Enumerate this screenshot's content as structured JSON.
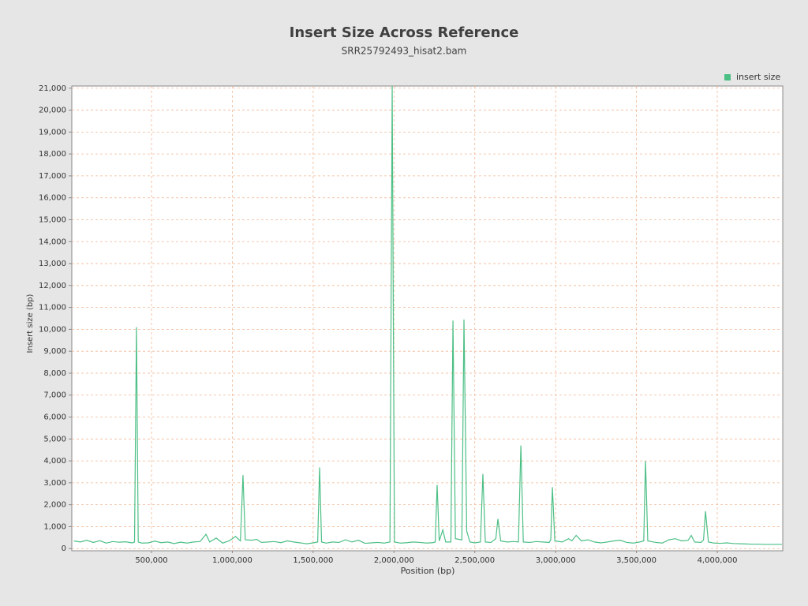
{
  "chart_data": {
    "type": "line",
    "title": "Insert Size Across Reference",
    "subtitle": "SRR25792493_hisat2.bam",
    "x_label": "Position (bp)",
    "y_label": "Insert size (bp)",
    "grid": true,
    "legend": "top-right",
    "xlim": [
      7000,
      4405000
    ],
    "ylim": [
      -100,
      21100
    ],
    "xticks": [
      {
        "value": 500000,
        "label": "500,000"
      },
      {
        "value": 1000000,
        "label": "1,000,000"
      },
      {
        "value": 1500000,
        "label": "1,500,000"
      },
      {
        "value": 2000000,
        "label": "2,000,000"
      },
      {
        "value": 2500000,
        "label": "2,500,000"
      },
      {
        "value": 3000000,
        "label": "3,000,000"
      },
      {
        "value": 3500000,
        "label": "3,500,000"
      },
      {
        "value": 4000000,
        "label": "4,000,000"
      }
    ],
    "yticks": [
      0,
      {
        "value": 1000,
        "label": "1,000"
      },
      {
        "value": 2000,
        "label": "2,000"
      },
      {
        "value": 3000,
        "label": "3,000"
      },
      {
        "value": 4000,
        "label": "4,000"
      },
      {
        "value": 5000,
        "label": "5,000"
      },
      {
        "value": 6000,
        "label": "6,000"
      },
      {
        "value": 7000,
        "label": "7,000"
      },
      {
        "value": 8000,
        "label": "8,000"
      },
      {
        "value": 9000,
        "label": "9,000"
      },
      {
        "value": 10000,
        "label": "10,000"
      },
      {
        "value": 11000,
        "label": "11,000"
      },
      {
        "value": 12000,
        "label": "12,000"
      },
      {
        "value": 13000,
        "label": "13,000"
      },
      {
        "value": 14000,
        "label": "14,000"
      },
      {
        "value": 15000,
        "label": "15,000"
      },
      {
        "value": 16000,
        "label": "16,000"
      },
      {
        "value": 17000,
        "label": "17,000"
      },
      {
        "value": 18000,
        "label": "18,000"
      },
      {
        "value": 19000,
        "label": "19,000"
      },
      {
        "value": 20000,
        "label": "20,000"
      },
      {
        "value": 21000,
        "label": "21,000"
      }
    ],
    "x": [
      20000,
      60000,
      100000,
      140000,
      180000,
      220000,
      260000,
      300000,
      340000,
      380000,
      395000,
      407000,
      418000,
      440000,
      480000,
      520000,
      560000,
      600000,
      640000,
      680000,
      720000,
      760000,
      800000,
      837000,
      860000,
      900000,
      940000,
      980000,
      1020000,
      1050000,
      1066000,
      1080000,
      1120000,
      1150000,
      1180000,
      1220000,
      1260000,
      1300000,
      1340000,
      1380000,
      1420000,
      1460000,
      1500000,
      1528000,
      1540000,
      1552000,
      1580000,
      1620000,
      1660000,
      1700000,
      1740000,
      1780000,
      1820000,
      1860000,
      1900000,
      1940000,
      1975000,
      1989000,
      2003000,
      2040000,
      2080000,
      2120000,
      2160000,
      2200000,
      2240000,
      2255000,
      2267000,
      2280000,
      2302000,
      2320000,
      2352000,
      2365000,
      2380000,
      2420000,
      2433000,
      2450000,
      2470000,
      2500000,
      2535000,
      2550000,
      2565000,
      2600000,
      2630000,
      2643000,
      2660000,
      2700000,
      2740000,
      2770000,
      2785000,
      2800000,
      2840000,
      2880000,
      2920000,
      2960000,
      2970000,
      2980000,
      2995000,
      3040000,
      3080000,
      3100000,
      3127000,
      3160000,
      3200000,
      3240000,
      3280000,
      3320000,
      3360000,
      3400000,
      3440000,
      3480000,
      3520000,
      3545000,
      3556000,
      3570000,
      3620000,
      3660000,
      3700000,
      3740000,
      3780000,
      3820000,
      3839000,
      3860000,
      3900000,
      3915000,
      3927000,
      3945000,
      3980000,
      4020000,
      4060000,
      4100000,
      4140000,
      4180000,
      4220000,
      4260000,
      4300000,
      4340000,
      4380000,
      4400000
    ],
    "series": [
      {
        "name": "insert size",
        "color": "#4cbf85",
        "values": [
          350,
          300,
          380,
          280,
          360,
          250,
          320,
          290,
          310,
          260,
          300,
          10100,
          300,
          250,
          260,
          340,
          270,
          300,
          230,
          290,
          250,
          300,
          320,
          650,
          300,
          480,
          250,
          350,
          550,
          350,
          3350,
          400,
          380,
          420,
          280,
          300,
          320,
          270,
          350,
          300,
          260,
          220,
          260,
          300,
          3700,
          300,
          250,
          300,
          280,
          400,
          300,
          380,
          240,
          260,
          280,
          250,
          300,
          21100,
          300,
          250,
          270,
          300,
          280,
          250,
          270,
          300,
          2900,
          350,
          850,
          300,
          300,
          10400,
          450,
          400,
          10450,
          800,
          300,
          260,
          300,
          3400,
          300,
          280,
          450,
          1350,
          350,
          300,
          320,
          300,
          4700,
          300,
          280,
          320,
          300,
          280,
          400,
          2800,
          350,
          300,
          450,
          350,
          600,
          350,
          400,
          300,
          260,
          300,
          350,
          380,
          280,
          250,
          300,
          350,
          4000,
          350,
          280,
          250,
          400,
          450,
          350,
          380,
          600,
          300,
          280,
          400,
          1700,
          300,
          250,
          240,
          260,
          230,
          220,
          210,
          200,
          200,
          190,
          190,
          190,
          190
        ]
      }
    ]
  }
}
